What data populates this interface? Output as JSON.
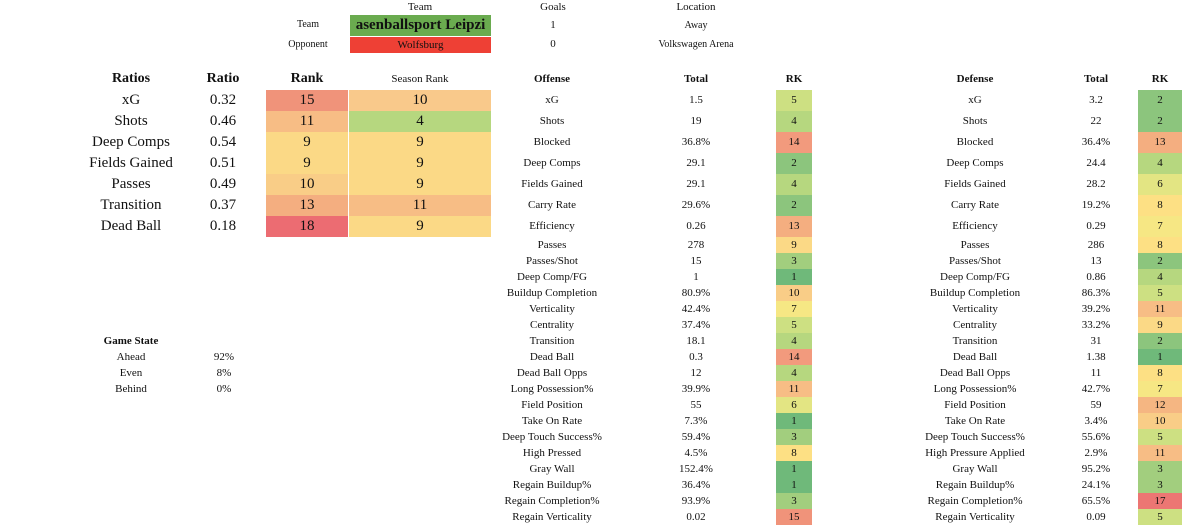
{
  "header": {
    "col_team": "Team",
    "col_goals": "Goals",
    "col_location": "Location",
    "row_team_label": "Team",
    "row_opp_label": "Opponent",
    "team_name": "asenballsport Leipzi",
    "team_color": "#6aab4f",
    "opponent_name": "Wolfsburg",
    "opponent_color": "#ee4035",
    "team_goals": "1",
    "opponent_goals": "0",
    "team_location": "Away",
    "opponent_location": "Volkswagen Arena"
  },
  "ratios": {
    "headers": {
      "name": "Ratios",
      "ratio": "Ratio",
      "rank": "Rank",
      "season_rank": "Season Rank"
    },
    "rows": [
      {
        "name": "xG",
        "ratio": "0.32",
        "rank": "15",
        "rank_color": "#f0937a",
        "season_rank": "10",
        "season_color": "#f9c98b"
      },
      {
        "name": "Shots",
        "ratio": "0.46",
        "rank": "11",
        "rank_color": "#f7bd85",
        "season_rank": "4",
        "season_color": "#b6d77f"
      },
      {
        "name": "Deep Comps",
        "ratio": "0.54",
        "rank": "9",
        "rank_color": "#fbd986",
        "season_rank": "9",
        "season_color": "#fbd986"
      },
      {
        "name": "Fields Gained",
        "ratio": "0.51",
        "rank": "9",
        "rank_color": "#fbd986",
        "season_rank": "9",
        "season_color": "#fbd986"
      },
      {
        "name": "Passes",
        "ratio": "0.49",
        "rank": "10",
        "rank_color": "#f9cd87",
        "season_rank": "9",
        "season_color": "#fbd986"
      },
      {
        "name": "Transition",
        "ratio": "0.37",
        "rank": "13",
        "rank_color": "#f4ae80",
        "season_rank": "11",
        "season_color": "#f7bd85"
      },
      {
        "name": "Dead Ball",
        "ratio": "0.18",
        "rank": "18",
        "rank_color": "#ec6c72",
        "season_rank": "9",
        "season_color": "#fbd986"
      }
    ]
  },
  "game_state": {
    "title": "Game State",
    "rows": [
      {
        "label": "Ahead",
        "value": "92%"
      },
      {
        "label": "Even",
        "value": "8%"
      },
      {
        "label": "Behind",
        "value": "0%"
      }
    ]
  },
  "offense": {
    "headers": {
      "name": "Offense",
      "total": "Total",
      "rk": "RK"
    },
    "rows": [
      {
        "name": "xG",
        "total": "1.5",
        "rk": "5",
        "color": "#cde082"
      },
      {
        "name": "Shots",
        "total": "19",
        "rk": "4",
        "color": "#b6d77f"
      },
      {
        "name": "Blocked",
        "total": "36.8%",
        "rk": "14",
        "color": "#f29a7d"
      },
      {
        "name": "Deep Comps",
        "total": "29.1",
        "rk": "2",
        "color": "#8cc57d"
      },
      {
        "name": "Fields Gained",
        "total": "29.1",
        "rk": "4",
        "color": "#b6d77f"
      },
      {
        "name": "Carry Rate",
        "total": "29.6%",
        "rk": "2",
        "color": "#8cc57d"
      },
      {
        "name": "Efficiency",
        "total": "0.26",
        "rk": "13",
        "color": "#f4ae80"
      },
      {
        "name": "Passes",
        "total": "278",
        "rk": "9",
        "color": "#fbd986"
      },
      {
        "name": "Passes/Shot",
        "total": "15",
        "rk": "3",
        "color": "#a2ce7e"
      },
      {
        "name": "Deep Comp/FG",
        "total": "1",
        "rk": "1",
        "color": "#6fb97a"
      },
      {
        "name": "Buildup Completion",
        "total": "80.9%",
        "rk": "10",
        "color": "#f9cd87"
      },
      {
        "name": "Verticality",
        "total": "42.4%",
        "rk": "7",
        "color": "#f6e784"
      },
      {
        "name": "Centrality",
        "total": "37.4%",
        "rk": "5",
        "color": "#cde082"
      },
      {
        "name": "Transition",
        "total": "18.1",
        "rk": "4",
        "color": "#b6d77f"
      },
      {
        "name": "Dead Ball",
        "total": "0.3",
        "rk": "14",
        "color": "#f29a7d"
      },
      {
        "name": "Dead Ball Opps",
        "total": "12",
        "rk": "4",
        "color": "#b6d77f"
      },
      {
        "name": "Long Possession%",
        "total": "39.9%",
        "rk": "11",
        "color": "#f7bd85"
      },
      {
        "name": "Field Position",
        "total": "55",
        "rk": "6",
        "color": "#e3e583"
      },
      {
        "name": "Take On Rate",
        "total": "7.3%",
        "rk": "1",
        "color": "#6fb97a"
      },
      {
        "name": "Deep Touch Success%",
        "total": "59.4%",
        "rk": "3",
        "color": "#a2ce7e"
      },
      {
        "name": "High Pressed",
        "total": "4.5%",
        "rk": "8",
        "color": "#fde084"
      },
      {
        "name": "Gray Wall",
        "total": "152.4%",
        "rk": "1",
        "color": "#6fb97a"
      },
      {
        "name": "Regain Buildup%",
        "total": "36.4%",
        "rk": "1",
        "color": "#6fb97a"
      },
      {
        "name": "Regain Completion%",
        "total": "93.9%",
        "rk": "3",
        "color": "#a2ce7e"
      },
      {
        "name": "Regain Verticality",
        "total": "0.02",
        "rk": "15",
        "color": "#f0937a"
      }
    ]
  },
  "defense": {
    "headers": {
      "name": "Defense",
      "total": "Total",
      "rk": "RK"
    },
    "rows": [
      {
        "name": "xG",
        "total": "3.2",
        "rk": "2",
        "color": "#8cc57d"
      },
      {
        "name": "Shots",
        "total": "22",
        "rk": "2",
        "color": "#8cc57d"
      },
      {
        "name": "Blocked",
        "total": "36.4%",
        "rk": "13",
        "color": "#f4ae80"
      },
      {
        "name": "Deep Comps",
        "total": "24.4",
        "rk": "4",
        "color": "#b6d77f"
      },
      {
        "name": "Fields Gained",
        "total": "28.2",
        "rk": "6",
        "color": "#e3e583"
      },
      {
        "name": "Carry Rate",
        "total": "19.2%",
        "rk": "8",
        "color": "#fde084"
      },
      {
        "name": "Efficiency",
        "total": "0.29",
        "rk": "7",
        "color": "#f6e784"
      },
      {
        "name": "Passes",
        "total": "286",
        "rk": "8",
        "color": "#fde084"
      },
      {
        "name": "Passes/Shot",
        "total": "13",
        "rk": "2",
        "color": "#8cc57d"
      },
      {
        "name": "Deep Comp/FG",
        "total": "0.86",
        "rk": "4",
        "color": "#b6d77f"
      },
      {
        "name": "Buildup Completion",
        "total": "86.3%",
        "rk": "5",
        "color": "#cde082"
      },
      {
        "name": "Verticality",
        "total": "39.2%",
        "rk": "11",
        "color": "#f7bd85"
      },
      {
        "name": "Centrality",
        "total": "33.2%",
        "rk": "9",
        "color": "#fbd986"
      },
      {
        "name": "Transition",
        "total": "31",
        "rk": "2",
        "color": "#8cc57d"
      },
      {
        "name": "Dead Ball",
        "total": "1.38",
        "rk": "1",
        "color": "#6fb97a"
      },
      {
        "name": "Dead Ball Opps",
        "total": "11",
        "rk": "8",
        "color": "#fde084"
      },
      {
        "name": "Long Possession%",
        "total": "42.7%",
        "rk": "7",
        "color": "#f6e784"
      },
      {
        "name": "Field Position",
        "total": "59",
        "rk": "12",
        "color": "#f5b682"
      },
      {
        "name": "Take On Rate",
        "total": "3.4%",
        "rk": "10",
        "color": "#f9cd87"
      },
      {
        "name": "Deep Touch Success%",
        "total": "55.6%",
        "rk": "5",
        "color": "#cde082"
      },
      {
        "name": "High Pressure Applied",
        "total": "2.9%",
        "rk": "11",
        "color": "#f7bd85"
      },
      {
        "name": "Gray Wall",
        "total": "95.2%",
        "rk": "3",
        "color": "#a2ce7e"
      },
      {
        "name": "Regain Buildup%",
        "total": "24.1%",
        "rk": "3",
        "color": "#a2ce7e"
      },
      {
        "name": "Regain Completion%",
        "total": "65.5%",
        "rk": "17",
        "color": "#ec7673"
      },
      {
        "name": "Regain Verticality",
        "total": "0.09",
        "rk": "5",
        "color": "#cde082"
      }
    ]
  }
}
